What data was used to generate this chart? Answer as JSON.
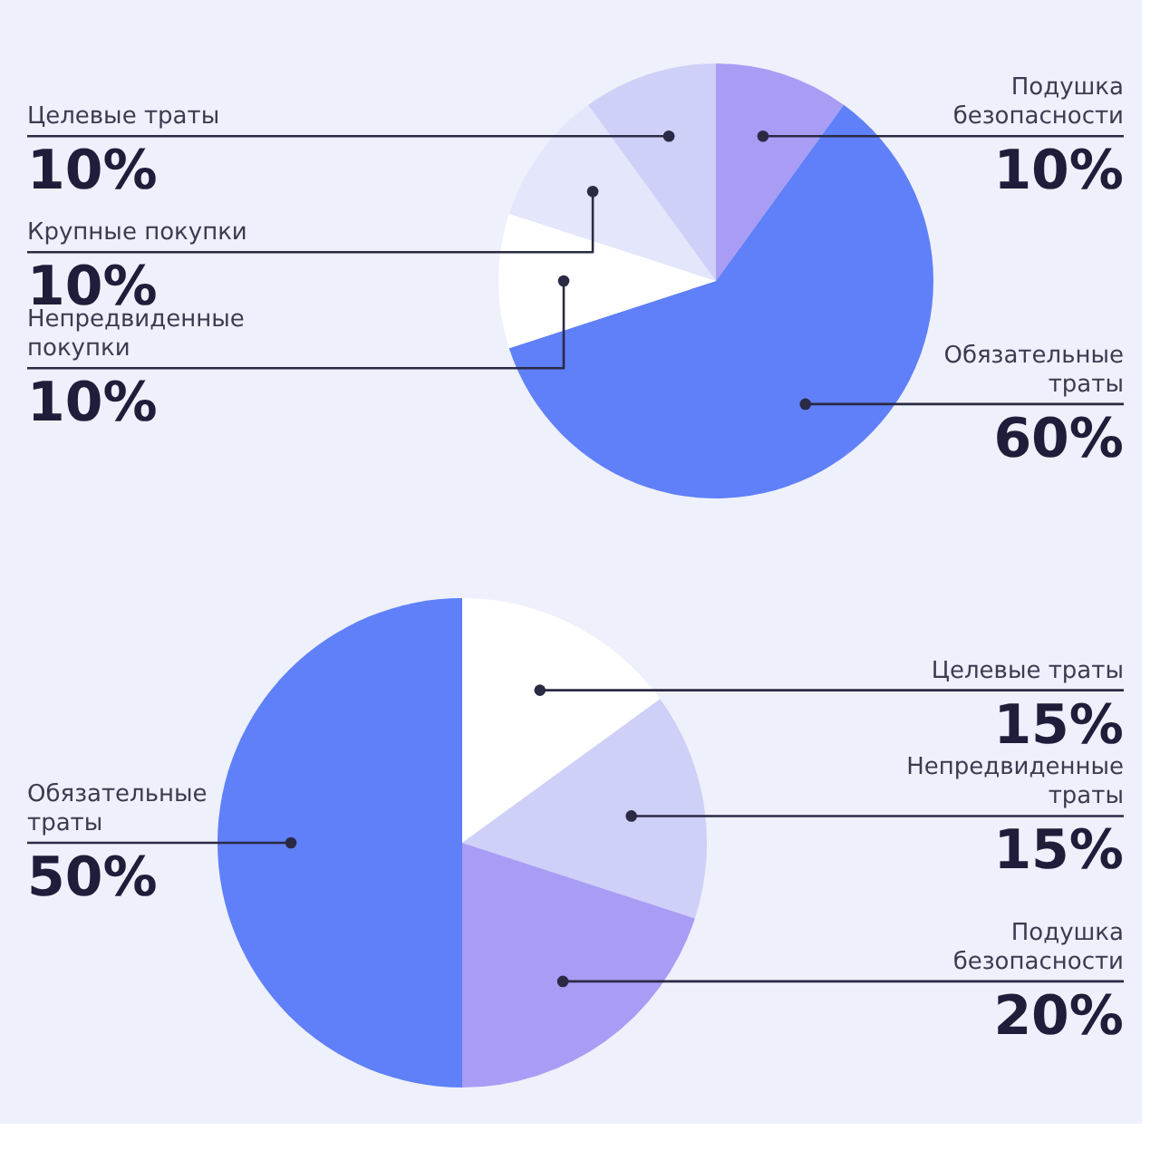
{
  "chart_data": [
    {
      "type": "pie",
      "categories": [
        "Подушка безопасности",
        "Обязательные траты",
        "Непредвиденные покупки",
        "Крупные покупки",
        "Целевые траты"
      ],
      "values": [
        10,
        60,
        10,
        10,
        10
      ],
      "colors": [
        "#a99cf5",
        "#5f80f8",
        "#ffffff",
        "#e4e6fb",
        "#cfd0f8"
      ],
      "value_labels": [
        "10%",
        "60%",
        "10%",
        "10%",
        "10%"
      ]
    },
    {
      "type": "pie",
      "categories": [
        "Целевые траты",
        "Непредвиденные траты",
        "Подушка безопасности",
        "Обязательные траты"
      ],
      "values": [
        15,
        15,
        20,
        50
      ],
      "colors": [
        "#ffffff",
        "#cfd0f8",
        "#a99cf5",
        "#5f80f8"
      ],
      "value_labels": [
        "15%",
        "15%",
        "20%",
        "50%"
      ]
    }
  ]
}
